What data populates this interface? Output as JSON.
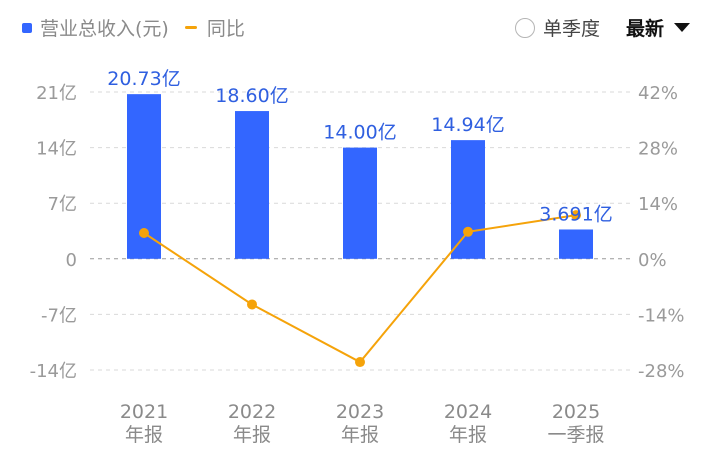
{
  "legend": {
    "bar_label": "营业总收入(元)",
    "line_label": "同比"
  },
  "controls": {
    "single_quarter_label": "单季度",
    "sort_label": "最新"
  },
  "colors": {
    "bar": "#3366ff",
    "line": "#f5a30a",
    "grid": "#d9d9d9",
    "tick": "#9a9a9a",
    "bar_label": "#2f5fe0"
  },
  "chart_data": {
    "type": "bar",
    "categories": [
      [
        "2021",
        "年报"
      ],
      [
        "2022",
        "年报"
      ],
      [
        "2023",
        "年报"
      ],
      [
        "2024",
        "年报"
      ],
      [
        "2025",
        "一季报"
      ]
    ],
    "series": [
      {
        "name": "营业总收入(元)",
        "type": "bar",
        "axis": "left",
        "values": [
          20.73,
          18.6,
          14.0,
          14.94,
          3.691
        ],
        "data_labels": [
          "20.73亿",
          "18.60亿",
          "14.00亿",
          "14.94亿",
          "3.691亿"
        ]
      },
      {
        "name": "同比",
        "type": "line",
        "axis": "right",
        "values": [
          6.5,
          -11.5,
          -26,
          6.8,
          11
        ]
      }
    ],
    "y_left": {
      "range": [
        -14,
        21
      ],
      "ticks": [
        21,
        14,
        7,
        0,
        -7,
        -14
      ],
      "tick_labels": [
        "21亿",
        "14亿",
        "7亿",
        "0",
        "-7亿",
        "-14亿"
      ]
    },
    "y_right": {
      "range": [
        -28,
        42
      ],
      "ticks": [
        42,
        28,
        14,
        0,
        -14,
        -28
      ],
      "tick_labels": [
        "42%",
        "28%",
        "14%",
        "0%",
        "-14%",
        "-28%"
      ]
    },
    "grid": true
  }
}
